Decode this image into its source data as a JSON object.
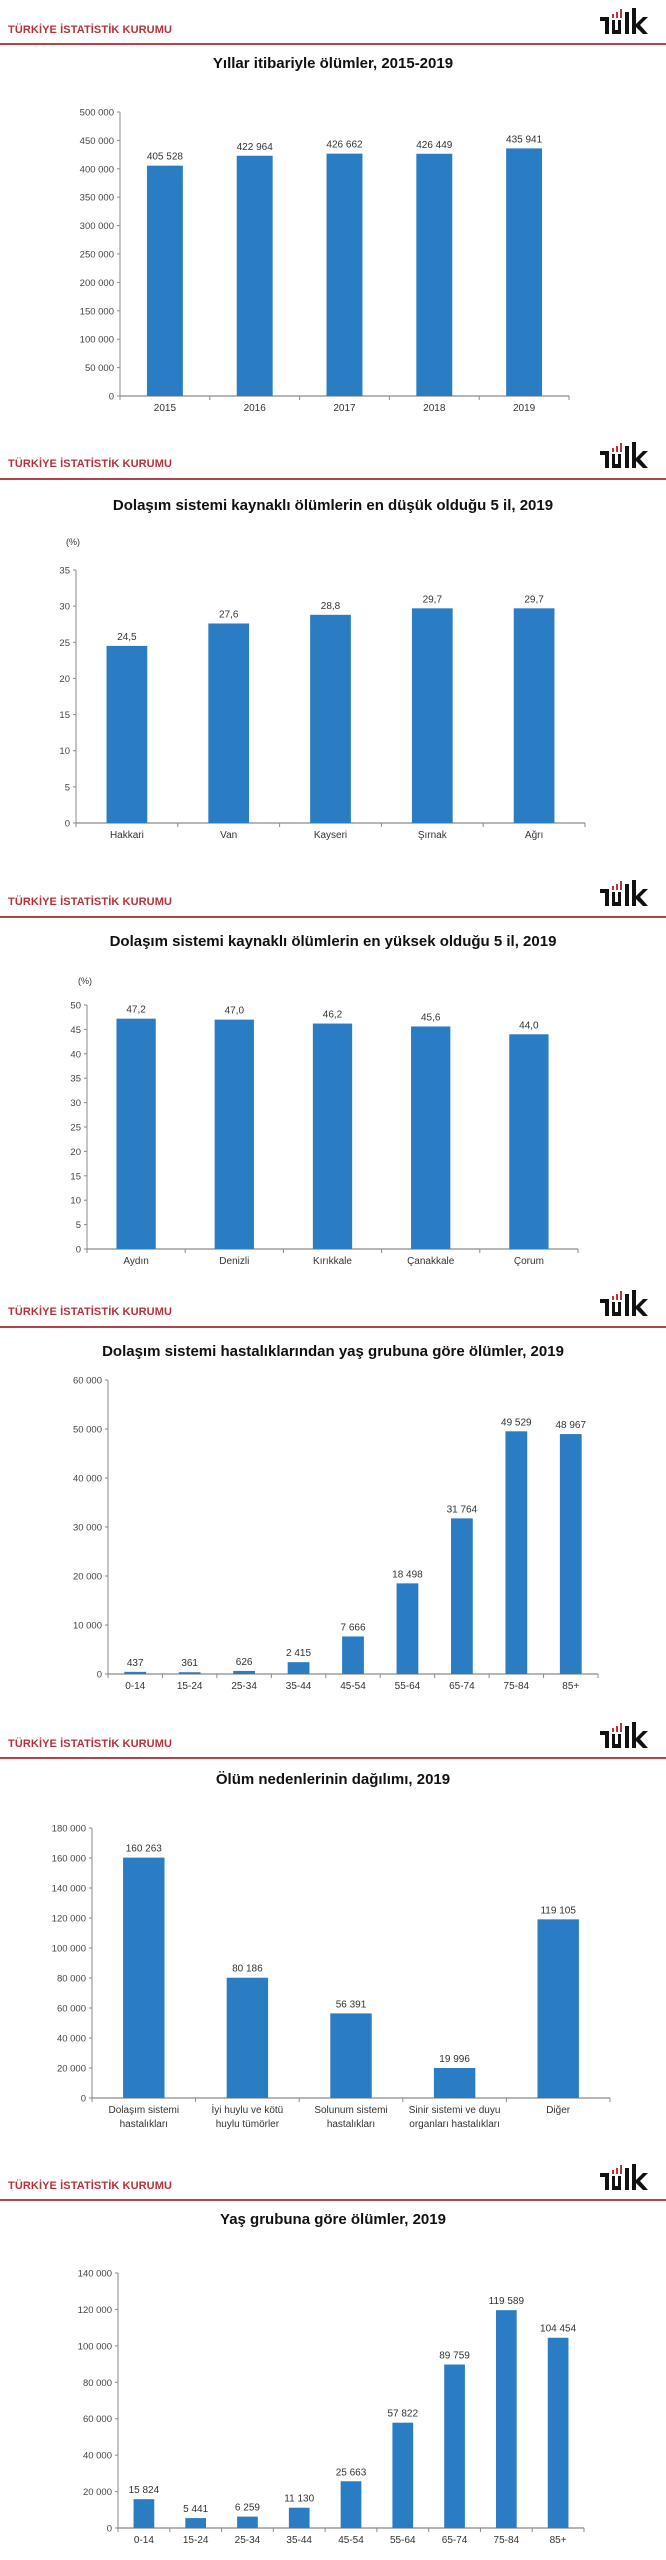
{
  "header": {
    "org_name": "TÜRKİYE İSTATİSTİK KURUMU",
    "logo_text": "TÜİK"
  },
  "colors": {
    "bar": "#2a7dc3",
    "brand_red": "#b3333b",
    "axis": "#888888"
  },
  "chart_data": [
    {
      "type": "bar",
      "title": "Yıllar itibariyle ölümler, 2015-2019",
      "xlabel": "",
      "ylabel": "",
      "categories": [
        "2015",
        "2016",
        "2017",
        "2018",
        "2019"
      ],
      "values": [
        405528,
        422964,
        426662,
        426449,
        435941
      ],
      "value_labels": [
        "405 528",
        "422 964",
        "426 662",
        "426 449",
        "435 941"
      ],
      "ylim": [
        0,
        500000
      ],
      "yticks": [
        "0",
        "50 000",
        "100 000",
        "150 000",
        "200 000",
        "250 000",
        "300 000",
        "350 000",
        "400 000",
        "450 000",
        "500 000"
      ]
    },
    {
      "type": "bar",
      "title": "Dolaşım sistemi kaynaklı ölümlerin en düşük olduğu 5 il, 2019",
      "xlabel": "",
      "ylabel": "(%)",
      "categories": [
        "Hakkari",
        "Van",
        "Kayseri",
        "Şırnak",
        "Ağrı"
      ],
      "values": [
        24.5,
        27.6,
        28.8,
        29.7,
        29.7
      ],
      "value_labels": [
        "24,5",
        "27,6",
        "28,8",
        "29,7",
        "29,7"
      ],
      "ylim": [
        0,
        35
      ],
      "yticks": [
        "0",
        "5",
        "10",
        "15",
        "20",
        "25",
        "30",
        "35"
      ]
    },
    {
      "type": "bar",
      "title": "Dolaşım sistemi kaynaklı ölümlerin en yüksek olduğu 5 il, 2019",
      "xlabel": "",
      "ylabel": "(%)",
      "categories": [
        "Aydın",
        "Denizli",
        "Kırıkkale",
        "Çanakkale",
        "Çorum"
      ],
      "values": [
        47.2,
        47.0,
        46.2,
        45.6,
        44.0
      ],
      "value_labels": [
        "47,2",
        "47,0",
        "46,2",
        "45,6",
        "44,0"
      ],
      "ylim": [
        0,
        50
      ],
      "yticks": [
        "0",
        "5",
        "10",
        "15",
        "20",
        "25",
        "30",
        "35",
        "40",
        "45",
        "50"
      ]
    },
    {
      "type": "bar",
      "title": "Dolaşım sistemi hastalıklarından yaş grubuna göre ölümler, 2019",
      "xlabel": "",
      "ylabel": "",
      "categories": [
        "0-14",
        "15-24",
        "25-34",
        "35-44",
        "45-54",
        "55-64",
        "65-74",
        "75-84",
        "85+"
      ],
      "values": [
        437,
        361,
        626,
        2415,
        7666,
        18498,
        31764,
        49529,
        48967
      ],
      "value_labels": [
        "437",
        "361",
        "626",
        "2 415",
        "7 666",
        "18 498",
        "31 764",
        "49 529",
        "48 967"
      ],
      "ylim": [
        0,
        60000
      ],
      "yticks": [
        "0",
        "10 000",
        "20 000",
        "30 000",
        "40 000",
        "50 000",
        "60 000"
      ]
    },
    {
      "type": "bar",
      "title": "Ölüm nedenlerinin dağılımı, 2019",
      "xlabel": "",
      "ylabel": "",
      "categories": [
        "Dolaşım sistemi\nhastalıkları",
        "İyi huylu ve kötü\nhuylu tümörler",
        "Solunum sistemi\nhastalıkları",
        "Sinir sistemi ve duyu\norganları hastalıkları",
        "Diğer"
      ],
      "values": [
        160263,
        80186,
        56391,
        19996,
        119105
      ],
      "value_labels": [
        "160 263",
        "80 186",
        "56 391",
        "19 996",
        "119 105"
      ],
      "ylim": [
        0,
        180000
      ],
      "yticks": [
        "0",
        "20 000",
        "40 000",
        "60 000",
        "80 000",
        "100 000",
        "120 000",
        "140 000",
        "160 000",
        "180 000"
      ]
    },
    {
      "type": "bar",
      "title": "Yaş grubuna göre ölümler, 2019",
      "xlabel": "",
      "ylabel": "",
      "categories": [
        "0-14",
        "15-24",
        "25-34",
        "35-44",
        "45-54",
        "55-64",
        "65-74",
        "75-84",
        "85+"
      ],
      "values": [
        15824,
        5441,
        6259,
        11130,
        25663,
        57822,
        89759,
        119589,
        104454
      ],
      "value_labels": [
        "15 824",
        "5 441",
        "6 259",
        "11 130",
        "25 663",
        "57 822",
        "89 759",
        "119 589",
        "104 454"
      ],
      "ylim": [
        0,
        140000
      ],
      "yticks": [
        "0",
        "20 000",
        "40 000",
        "60 000",
        "80 000",
        "100 000",
        "120 000",
        "140 000"
      ]
    }
  ]
}
